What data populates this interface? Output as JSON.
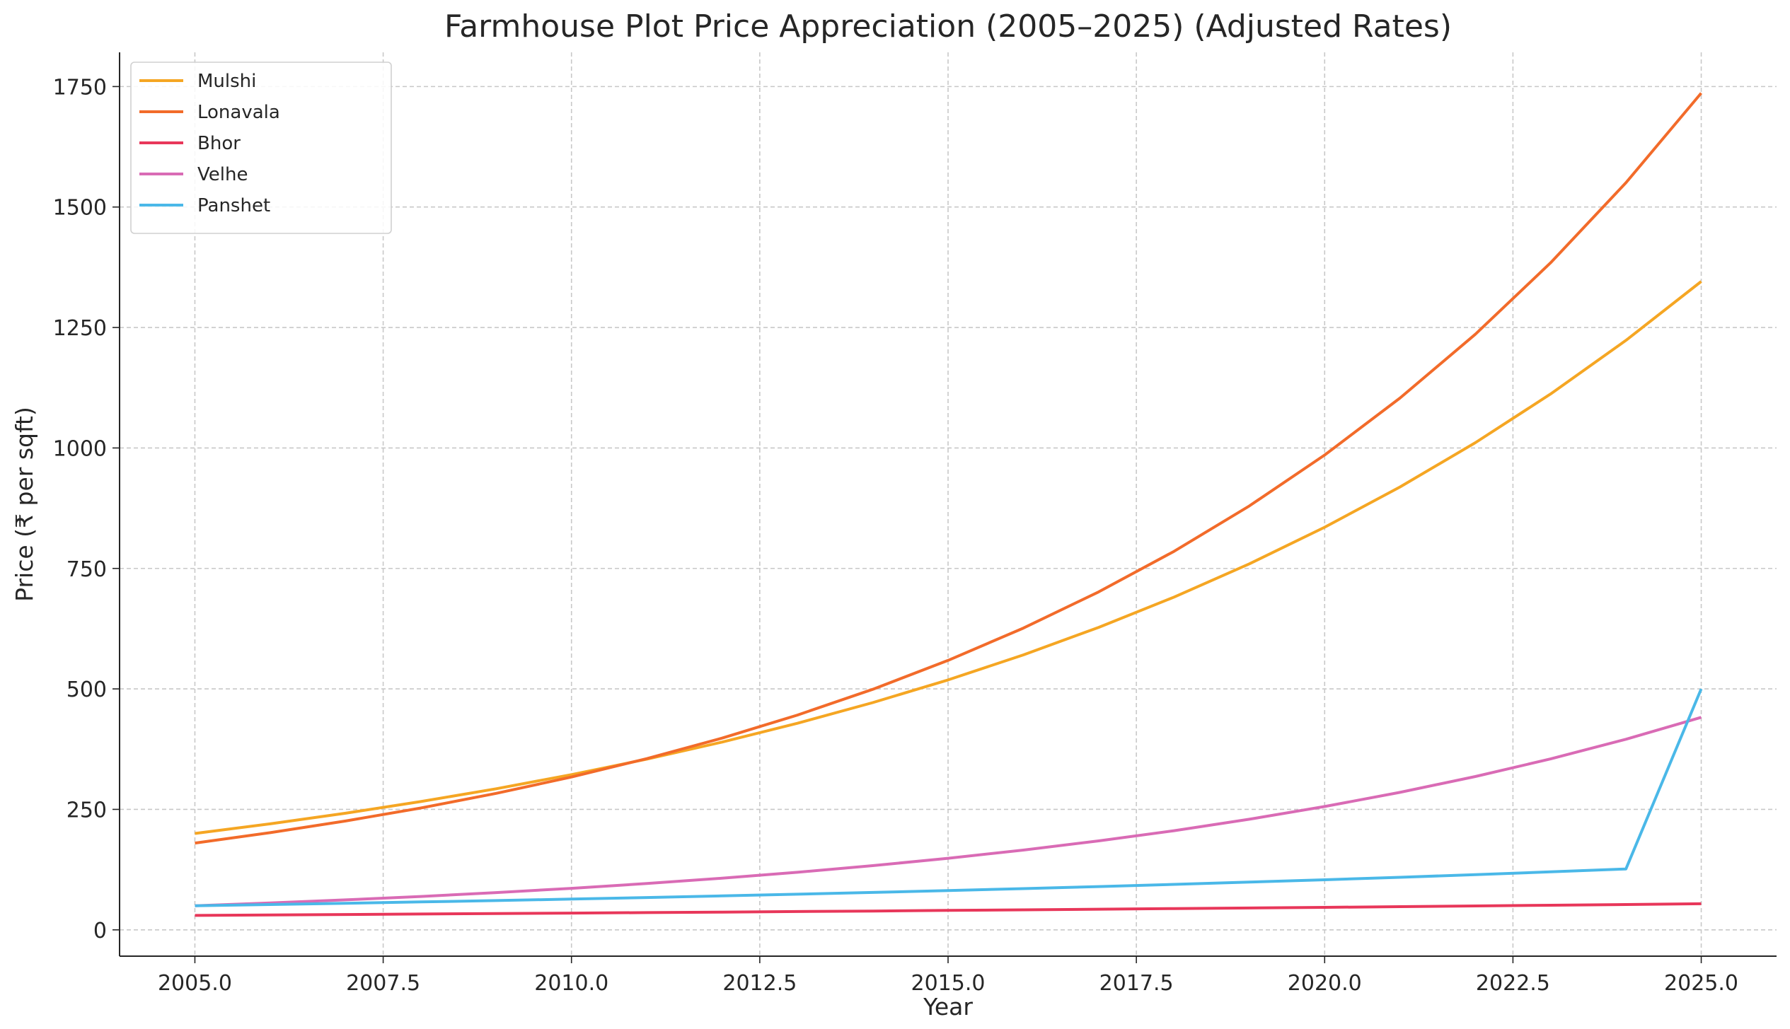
{
  "chart_data": {
    "type": "line",
    "title": "Farmhouse Plot Price Appreciation (2005–2025) (Adjusted Rates)",
    "xlabel": "Year",
    "ylabel": "Price (₹ per sqft)",
    "xlim": [
      2004,
      2026
    ],
    "ylim": [
      -54.6,
      1821
    ],
    "xticks": [
      2005.0,
      2007.5,
      2010.0,
      2012.5,
      2015.0,
      2017.5,
      2020.0,
      2022.5,
      2025.0
    ],
    "xtick_labels": [
      "2005.0",
      "2007.5",
      "2010.0",
      "2012.5",
      "2015.0",
      "2017.5",
      "2020.0",
      "2022.5",
      "2025.0"
    ],
    "yticks": [
      0,
      250,
      500,
      750,
      1000,
      1250,
      1500,
      1750
    ],
    "ytick_labels": [
      "0",
      "250",
      "500",
      "750",
      "1000",
      "1250",
      "1500",
      "1750"
    ],
    "grid": true,
    "legend_position": "top-left",
    "x": [
      2005,
      2006,
      2007,
      2008,
      2009,
      2010,
      2011,
      2012,
      2013,
      2014,
      2015,
      2016,
      2017,
      2018,
      2019,
      2020,
      2021,
      2022,
      2023,
      2024,
      2025
    ],
    "series": [
      {
        "name": "Mulshi",
        "color": "#f5a623",
        "values": [
          200,
          220,
          242,
          266.2,
          292.8,
          322.1,
          354.3,
          389.7,
          428.7,
          471.6,
          518.7,
          570.6,
          627.7,
          690.5,
          759.5,
          835.5,
          919.0,
          1010.9,
          1112.0,
          1223.2,
          1345.5
        ]
      },
      {
        "name": "Lonavala",
        "color": "#f26b2a",
        "values": [
          180,
          201.6,
          225.8,
          252.9,
          283.2,
          317.2,
          355.3,
          397.9,
          445.7,
          499.2,
          559.1,
          626.2,
          701.3,
          785.5,
          879.7,
          985.3,
          1103.5,
          1235.9,
          1384.2,
          1550.4,
          1736.4
        ]
      },
      {
        "name": "Bhor",
        "color": "#e8375a",
        "values": [
          30,
          30.9,
          31.8,
          32.8,
          33.8,
          34.8,
          35.8,
          36.9,
          38.0,
          39.1,
          40.3,
          41.5,
          42.8,
          44.1,
          45.4,
          46.7,
          48.1,
          49.6,
          51.1,
          52.6,
          54.2
        ]
      },
      {
        "name": "Velhe",
        "color": "#d96bb5",
        "values": [
          50,
          55.8,
          62.2,
          69.3,
          77.3,
          86.2,
          96.1,
          107.1,
          119.4,
          133.2,
          148.5,
          165.6,
          184.6,
          205.8,
          229.5,
          255.9,
          285.3,
          318.2,
          354.7,
          395.5,
          441.0
        ]
      },
      {
        "name": "Panshet",
        "color": "#4ab8e8",
        "values": [
          50,
          52.5,
          55.1,
          57.9,
          60.8,
          63.8,
          67.0,
          70.4,
          73.9,
          77.6,
          81.4,
          85.5,
          89.8,
          94.3,
          99.0,
          103.9,
          109.1,
          114.6,
          120.3,
          126.3,
          500
        ]
      }
    ]
  }
}
